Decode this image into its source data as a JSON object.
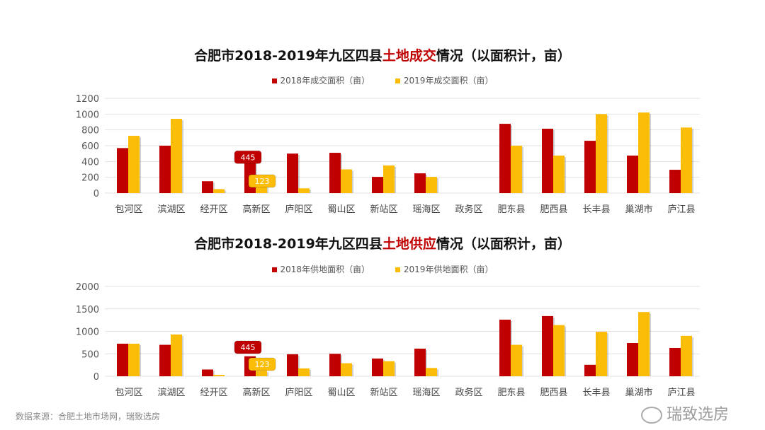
{
  "colors": {
    "y2018": "#c00000",
    "y2019": "#fbbd08",
    "highlight": "#c00000",
    "grid": "#e2e2e2"
  },
  "source": "数据来源：合肥土地市场网，瑞致选房",
  "watermark": "瑞致选房",
  "chart_data": [
    {
      "type": "bar",
      "title_pre": "合肥市2018-2019年九区四县",
      "title_hl": "土地成交",
      "title_post": "情况（以面积计，亩）",
      "legend_position": "top",
      "grid": true,
      "ylim": [
        0,
        1200
      ],
      "yticks": [
        "0",
        "200",
        "400",
        "600",
        "800",
        "1000",
        "1200"
      ],
      "categories": [
        "包河区",
        "滨湖区",
        "经开区",
        "高新区",
        "庐阳区",
        "蜀山区",
        "新站区",
        "瑶海区",
        "政务区",
        "肥东县",
        "肥西县",
        "长丰县",
        "巢湖市",
        "庐江县"
      ],
      "series": [
        {
          "name": "2018年成交面积（亩）",
          "values": [
            570,
            600,
            150,
            445,
            500,
            510,
            205,
            250,
            0,
            877,
            815,
            662,
            475,
            295
          ]
        },
        {
          "name": "2019年成交面积（亩）",
          "values": [
            725,
            940,
            50,
            123,
            60,
            300,
            350,
            205,
            0,
            600,
            475,
            1000,
            1020,
            830
          ]
        }
      ],
      "annotations": [
        {
          "category": "高新区",
          "series": 0,
          "text": "445"
        },
        {
          "category": "高新区",
          "series": 1,
          "text": "123"
        }
      ]
    },
    {
      "type": "bar",
      "title_pre": "合肥市2018-2019年九区四县",
      "title_hl": "土地供应",
      "title_post": "情况（以面积计，亩）",
      "legend_position": "top",
      "grid": true,
      "ylim": [
        0,
        2000
      ],
      "yticks": [
        "0",
        "500",
        "1000",
        "1500",
        "2000"
      ],
      "categories": [
        "包河区",
        "滨湖区",
        "经开区",
        "高新区",
        "庐阳区",
        "蜀山区",
        "新站区",
        "瑶海区",
        "政务区",
        "肥东县",
        "肥西县",
        "长丰县",
        "巢湖市",
        "庐江县"
      ],
      "series": [
        {
          "name": "2018年供地面积（亩）",
          "values": [
            725,
            700,
            150,
            445,
            490,
            500,
            395,
            615,
            0,
            1260,
            1340,
            255,
            740,
            630
          ]
        },
        {
          "name": "2019年供地面积（亩）",
          "values": [
            725,
            930,
            30,
            123,
            175,
            290,
            335,
            185,
            0,
            700,
            1140,
            990,
            1430,
            900
          ]
        }
      ],
      "annotations": [
        {
          "category": "高新区",
          "series": 0,
          "text": "445"
        },
        {
          "category": "高新区",
          "series": 1,
          "text": "123"
        }
      ]
    }
  ]
}
